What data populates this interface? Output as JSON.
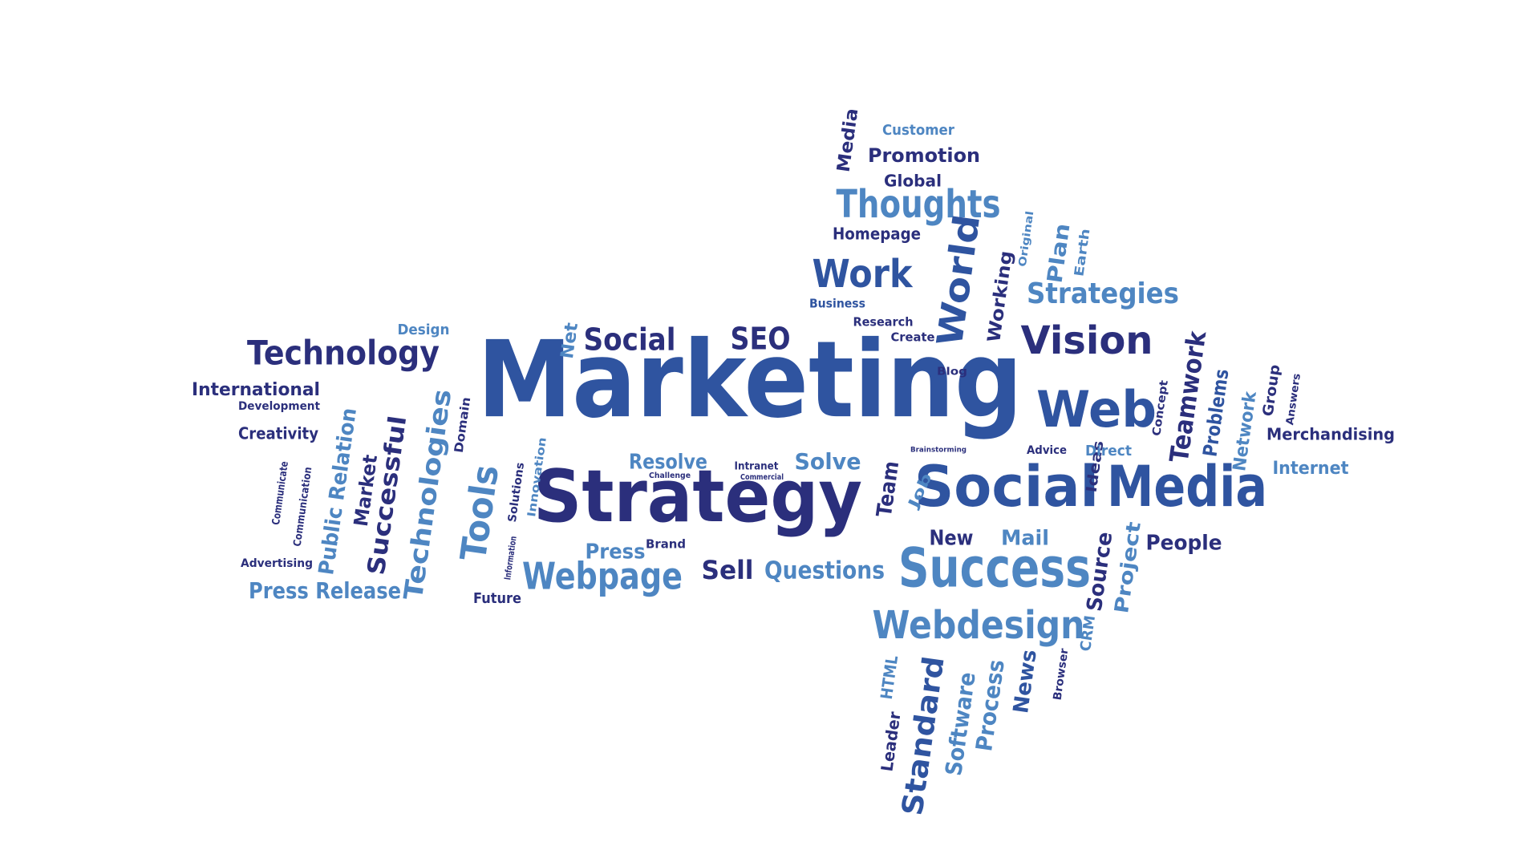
{
  "colors": {
    "dark": "#2b2f7c",
    "mid": "#2f54a0",
    "light": "#4e86c2"
  },
  "words": [
    {
      "text": "Marketing",
      "tone": "mid"
    },
    {
      "text": "Strategy",
      "tone": "dark"
    },
    {
      "text": "Social",
      "tone": "mid"
    },
    {
      "text": "Media",
      "tone": "mid"
    },
    {
      "text": "Success",
      "tone": "light"
    },
    {
      "text": "Web",
      "tone": "mid"
    },
    {
      "text": "Webdesign",
      "tone": "light"
    },
    {
      "text": "Webpage",
      "tone": "light"
    },
    {
      "text": "Technology",
      "tone": "dark"
    },
    {
      "text": "Vision",
      "tone": "dark"
    },
    {
      "text": "Thoughts",
      "tone": "light"
    },
    {
      "text": "Strategies",
      "tone": "light"
    },
    {
      "text": "Work",
      "tone": "mid"
    },
    {
      "text": "World",
      "tone": "mid"
    },
    {
      "text": "Social",
      "tone": "dark"
    },
    {
      "text": "SEO",
      "tone": "dark"
    },
    {
      "text": "Tools",
      "tone": "light"
    },
    {
      "text": "Technologies",
      "tone": "light"
    },
    {
      "text": "Successful",
      "tone": "dark"
    },
    {
      "text": "Standard",
      "tone": "mid"
    },
    {
      "text": "Teamwork",
      "tone": "dark"
    },
    {
      "text": "Software",
      "tone": "light"
    },
    {
      "text": "Process",
      "tone": "light"
    },
    {
      "text": "Press Release",
      "tone": "light"
    },
    {
      "text": "Questions",
      "tone": "light"
    },
    {
      "text": "Promotion",
      "tone": "dark"
    },
    {
      "text": "Sell",
      "tone": "dark"
    },
    {
      "text": "Public Relation",
      "tone": "light"
    },
    {
      "text": "Market",
      "tone": "dark"
    },
    {
      "text": "Team",
      "tone": "dark"
    },
    {
      "text": "Problems",
      "tone": "mid"
    },
    {
      "text": "Network",
      "tone": "light"
    },
    {
      "text": "Source",
      "tone": "dark"
    },
    {
      "text": "Project",
      "tone": "light"
    },
    {
      "text": "People",
      "tone": "dark"
    },
    {
      "text": "New",
      "tone": "dark"
    },
    {
      "text": "Mail",
      "tone": "light"
    },
    {
      "text": "Resolve",
      "tone": "light"
    },
    {
      "text": "Solve",
      "tone": "light"
    },
    {
      "text": "Press",
      "tone": "light"
    },
    {
      "text": "Plan",
      "tone": "light"
    },
    {
      "text": "Working",
      "tone": "dark"
    },
    {
      "text": "News",
      "tone": "mid"
    },
    {
      "text": "Merchandising",
      "tone": "dark"
    },
    {
      "text": "Internet",
      "tone": "light"
    },
    {
      "text": "Creativity",
      "tone": "dark"
    },
    {
      "text": "International",
      "tone": "dark"
    },
    {
      "text": "Media",
      "tone": "dark"
    },
    {
      "text": "Homepage",
      "tone": "dark"
    },
    {
      "text": "Global",
      "tone": "dark"
    },
    {
      "text": "Customer",
      "tone": "light"
    },
    {
      "text": "Design",
      "tone": "light"
    },
    {
      "text": "Net",
      "tone": "light"
    },
    {
      "text": "Job",
      "tone": "light"
    },
    {
      "text": "Ideas",
      "tone": "dark"
    },
    {
      "text": "Direct",
      "tone": "light"
    },
    {
      "text": "Advice",
      "tone": "dark"
    },
    {
      "text": "Group",
      "tone": "dark"
    },
    {
      "text": "Business",
      "tone": "mid"
    },
    {
      "text": "Research",
      "tone": "dark"
    },
    {
      "text": "Create",
      "tone": "dark"
    },
    {
      "text": "Blog",
      "tone": "dark"
    },
    {
      "text": "Earth",
      "tone": "light"
    },
    {
      "text": "Original",
      "tone": "light"
    },
    {
      "text": "Development",
      "tone": "dark"
    },
    {
      "text": "Domain",
      "tone": "dark"
    },
    {
      "text": "Communicate",
      "tone": "dark"
    },
    {
      "text": "Communication",
      "tone": "dark"
    },
    {
      "text": "Advertising",
      "tone": "dark"
    },
    {
      "text": "Future",
      "tone": "dark"
    },
    {
      "text": "Solutions",
      "tone": "dark"
    },
    {
      "text": "Innovation",
      "tone": "light"
    },
    {
      "text": "Information",
      "tone": "dark"
    },
    {
      "text": "Brand",
      "tone": "dark"
    },
    {
      "text": "Challenge",
      "tone": "dark"
    },
    {
      "text": "Intranet",
      "tone": "dark"
    },
    {
      "text": "Commercial",
      "tone": "dark"
    },
    {
      "text": "Brainstorming",
      "tone": "dark"
    },
    {
      "text": "Concept",
      "tone": "dark"
    },
    {
      "text": "Answers",
      "tone": "dark"
    },
    {
      "text": "HTML",
      "tone": "light"
    },
    {
      "text": "Leader",
      "tone": "dark"
    },
    {
      "text": "CRM",
      "tone": "light"
    },
    {
      "text": "Browser",
      "tone": "dark"
    }
  ]
}
